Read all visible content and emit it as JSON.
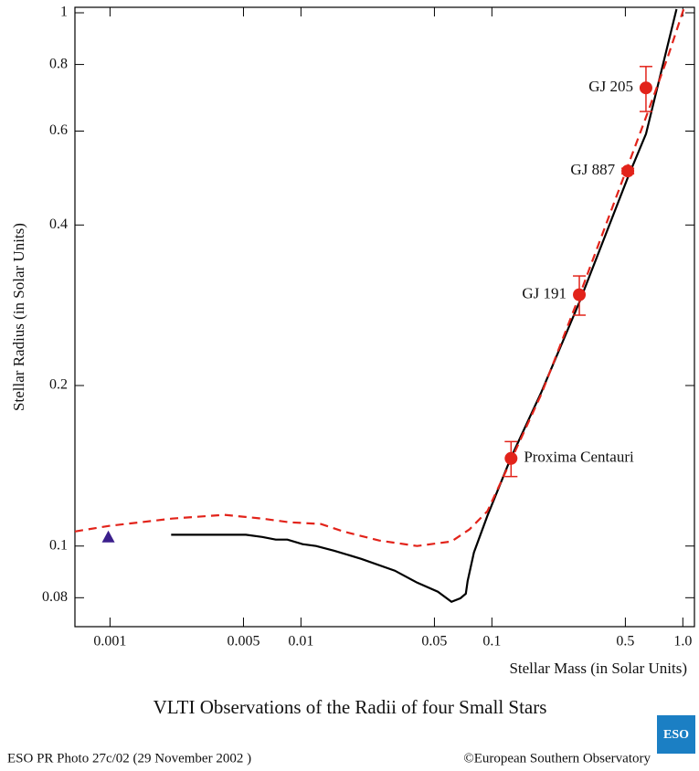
{
  "chart_data": {
    "type": "scatter",
    "title": "VLTI Observations of the Radii of four Small Stars",
    "xlabel": "Stellar Mass (in Solar Units)",
    "ylabel": "Stellar Radius (in Solar Units)",
    "xscale": "log",
    "yscale": "log",
    "xlim": [
      0.000655,
      1.15
    ],
    "ylim": [
      0.0706,
      1.024
    ],
    "xticks": [
      0.001,
      0.005,
      0.01,
      0.05,
      0.1,
      0.5,
      {
        "value": 1,
        "label": "1.0"
      }
    ],
    "yticks": [
      0.08,
      0.1,
      0.2,
      0.4,
      0.6,
      0.8,
      1
    ],
    "points": {
      "color": "#e2231a",
      "labels": [
        "Proxima Centauri",
        "GJ 191",
        "GJ 887",
        "GJ 205"
      ],
      "x": [
        0.126,
        0.287,
        0.515,
        0.641
      ],
      "y": [
        0.146,
        0.296,
        0.505,
        0.723
      ],
      "errors": [
        0.011,
        0.025,
        0.006,
        0.07
      ]
    },
    "triangle": {
      "color": "#3b1f8c",
      "x": 0.00098,
      "y": 0.104
    },
    "lines": [
      {
        "color": "#000000",
        "dash": false,
        "x": [
          0.00209,
          0.00515,
          0.00627,
          0.00738,
          0.00849,
          0.0102,
          0.012,
          0.01496,
          0.0207,
          0.031,
          0.0406,
          0.0521,
          0.0614,
          0.0684,
          0.073,
          0.0746,
          0.0805,
          0.0947,
          0.1256,
          0.1817,
          0.287,
          0.515,
          0.641,
          0.927
        ],
        "y": [
          0.105,
          0.105,
          0.104,
          0.1028,
          0.1028,
          0.1008,
          0.1,
          0.098,
          0.0946,
          0.0899,
          0.0854,
          0.0821,
          0.0786,
          0.0798,
          0.0814,
          0.086,
          0.0973,
          0.1139,
          0.1462,
          0.1944,
          0.2864,
          0.491,
          0.593,
          1.016
        ]
      },
      {
        "color": "#e2231a",
        "dash": true,
        "x": [
          0.000655,
          0.000989,
          0.00211,
          0.00397,
          0.00627,
          0.00868,
          0.0127,
          0.0167,
          0.0257,
          0.0406,
          0.0614,
          0.0762,
          0.0947,
          0.1256,
          0.1817,
          0.287,
          0.515,
          0.641,
          0.832,
          1.01
        ],
        "y": [
          0.1065,
          0.1091,
          0.1126,
          0.1144,
          0.1126,
          0.1108,
          0.11,
          0.1065,
          0.1024,
          0.1,
          0.102,
          0.1074,
          0.1162,
          0.1445,
          0.1928,
          0.2944,
          0.516,
          0.637,
          0.824,
          1.016
        ]
      }
    ],
    "footer_left": "ESO PR Photo 27c/02 (29 November 2002 )",
    "footer_right": "©European Southern Observatory",
    "logo": "ESO"
  }
}
